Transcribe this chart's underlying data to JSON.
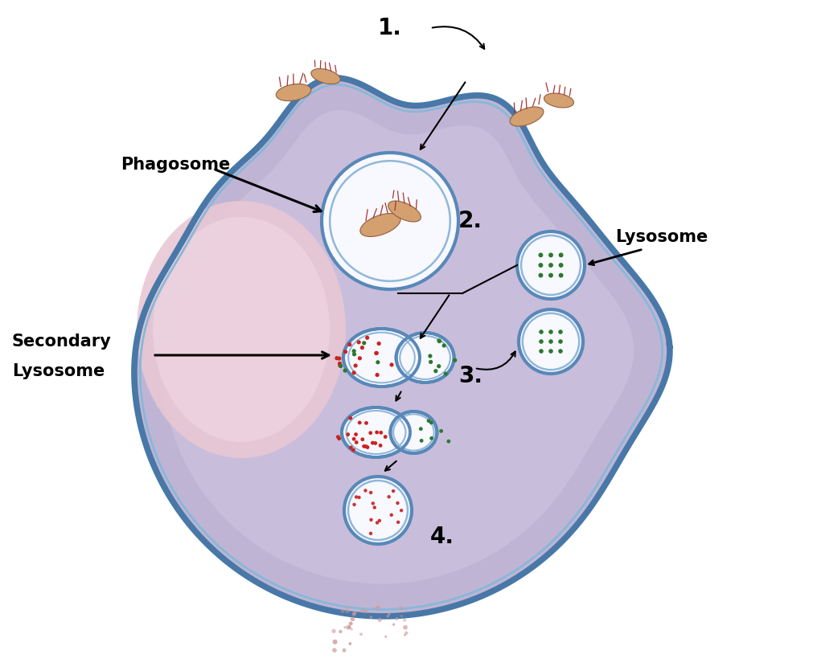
{
  "bg_color": "#ffffff",
  "cell_fill": "#c8bcdc",
  "cell_fill_light": "#d8ccec",
  "cell_border_dark": "#5888b8",
  "cell_border_light": "#90b8d8",
  "nucleus_outer": "#e0c8d8",
  "nucleus_inner": "#ecd4e0",
  "vesicle_fill": "#f8f8ff",
  "vesicle_border_dark": "#5888b8",
  "vesicle_border_light": "#90b8d8",
  "lyso_dot_color": "#2a7a2a",
  "red_dot_color": "#cc2222",
  "bacteria_body": "#d4a070",
  "bacteria_edge": "#906040",
  "bacteria_tentacle": "#aa3333",
  "waste_dot": "#dd9999",
  "label_phagosome": "Phagosome",
  "label_lysosome": "Lysosome",
  "label_secondary_1": "Secondary",
  "label_secondary_2": "Lysosome",
  "label_1": "1.",
  "label_2": "2.",
  "label_3": "3.",
  "label_4": "4.",
  "label_fontsize": 15,
  "number_fontsize": 20
}
